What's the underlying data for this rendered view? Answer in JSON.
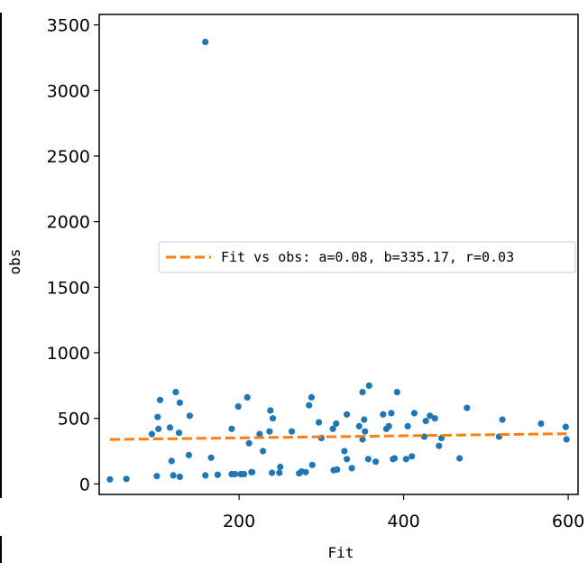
{
  "chart_data": {
    "type": "scatter",
    "xlabel": "Fit",
    "ylabel": "obs",
    "xlim": [
      30,
      612
    ],
    "ylim": [
      -80,
      3580
    ],
    "xticks": [
      200,
      400,
      600
    ],
    "yticks": [
      0,
      500,
      1000,
      1500,
      2000,
      2500,
      3000,
      3500
    ],
    "grid": false,
    "legend_placement": "center-right",
    "colors": {
      "points": "#1f77b4",
      "fit": "#ff7f0e"
    },
    "series": [
      {
        "points": [
          [
            43,
            35
          ],
          [
            63,
            38
          ],
          [
            94,
            380
          ],
          [
            100,
            60
          ],
          [
            101,
            510
          ],
          [
            102,
            420
          ],
          [
            104,
            640
          ],
          [
            116,
            430
          ],
          [
            118,
            175
          ],
          [
            120,
            65
          ],
          [
            123,
            700
          ],
          [
            127,
            390
          ],
          [
            128,
            620
          ],
          [
            128,
            55
          ],
          [
            139,
            220
          ],
          [
            140,
            520
          ],
          [
            159,
            3370
          ],
          [
            159,
            65
          ],
          [
            166,
            200
          ],
          [
            174,
            70
          ],
          [
            191,
            75
          ],
          [
            191,
            420
          ],
          [
            195,
            75
          ],
          [
            199,
            590
          ],
          [
            202,
            75
          ],
          [
            206,
            75
          ],
          [
            210,
            660
          ],
          [
            212,
            310
          ],
          [
            215,
            90
          ],
          [
            216,
            90
          ],
          [
            225,
            380
          ],
          [
            229,
            250
          ],
          [
            237,
            400
          ],
          [
            238,
            560
          ],
          [
            240,
            85
          ],
          [
            241,
            500
          ],
          [
            249,
            85
          ],
          [
            250,
            130
          ],
          [
            264,
            400
          ],
          [
            273,
            80
          ],
          [
            276,
            95
          ],
          [
            281,
            90
          ],
          [
            285,
            600
          ],
          [
            288,
            660
          ],
          [
            289,
            145
          ],
          [
            297,
            470
          ],
          [
            300,
            350
          ],
          [
            314,
            420
          ],
          [
            315,
            105
          ],
          [
            318,
            460
          ],
          [
            319,
            110
          ],
          [
            328,
            250
          ],
          [
            331,
            530
          ],
          [
            331,
            190
          ],
          [
            337,
            120
          ],
          [
            346,
            440
          ],
          [
            350,
            340
          ],
          [
            350,
            700
          ],
          [
            352,
            490
          ],
          [
            353,
            400
          ],
          [
            357,
            190
          ],
          [
            358,
            750
          ],
          [
            366,
            170
          ],
          [
            375,
            530
          ],
          [
            379,
            420
          ],
          [
            382,
            440
          ],
          [
            385,
            540
          ],
          [
            387,
            190
          ],
          [
            389,
            195
          ],
          [
            392,
            700
          ],
          [
            403,
            190
          ],
          [
            405,
            440
          ],
          [
            410,
            210
          ],
          [
            413,
            540
          ],
          [
            425,
            360
          ],
          [
            427,
            480
          ],
          [
            432,
            520
          ],
          [
            438,
            500
          ],
          [
            443,
            290
          ],
          [
            446,
            350
          ],
          [
            468,
            195
          ],
          [
            477,
            580
          ],
          [
            516,
            360
          ],
          [
            520,
            490
          ],
          [
            567,
            460
          ],
          [
            597,
            435
          ],
          [
            598,
            340
          ]
        ]
      },
      {
        "name": "Fit vs obs: a=0.08, b=335.17, r=0.03",
        "kind": "fit-line",
        "a": 0.08,
        "b": 335.17,
        "r": 0.03,
        "x_range": [
          43,
          598
        ]
      }
    ]
  }
}
